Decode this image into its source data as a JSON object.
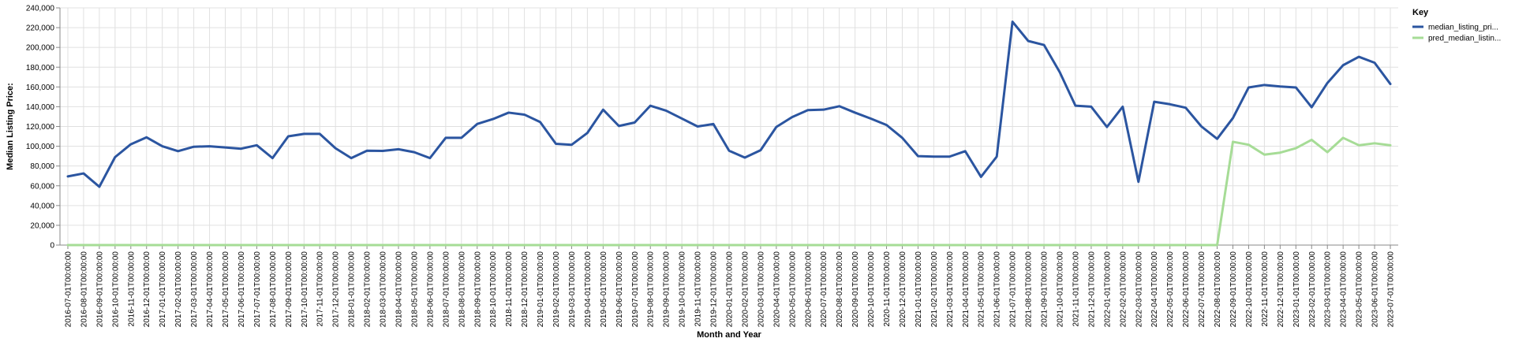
{
  "chart_data": {
    "type": "line",
    "title": "",
    "xlabel": "Month and Year",
    "ylabel": "Median Listing Price:",
    "ylim": [
      0,
      240000
    ],
    "y_ticks": [
      0,
      20000,
      40000,
      60000,
      80000,
      100000,
      120000,
      140000,
      160000,
      180000,
      200000,
      220000,
      240000
    ],
    "y_tick_labels": [
      "0",
      "20,000",
      "40,000",
      "60,000",
      "80,000",
      "100,000",
      "120,000",
      "140,000",
      "160,000",
      "180,000",
      "200,000",
      "220,000",
      "240,000"
    ],
    "grid": true,
    "legend": {
      "title": "Key",
      "position": "right"
    },
    "categories": [
      "2016-07-01T00:00:00",
      "2016-08-01T00:00:00",
      "2016-09-01T00:00:00",
      "2016-10-01T00:00:00",
      "2016-11-01T00:00:00",
      "2016-12-01T00:00:00",
      "2017-01-01T00:00:00",
      "2017-02-01T00:00:00",
      "2017-03-01T00:00:00",
      "2017-04-01T00:00:00",
      "2017-05-01T00:00:00",
      "2017-06-01T00:00:00",
      "2017-07-01T00:00:00",
      "2017-08-01T00:00:00",
      "2017-09-01T00:00:00",
      "2017-10-01T00:00:00",
      "2017-11-01T00:00:00",
      "2017-12-01T00:00:00",
      "2018-01-01T00:00:00",
      "2018-02-01T00:00:00",
      "2018-03-01T00:00:00",
      "2018-04-01T00:00:00",
      "2018-05-01T00:00:00",
      "2018-06-01T00:00:00",
      "2018-07-01T00:00:00",
      "2018-08-01T00:00:00",
      "2018-09-01T00:00:00",
      "2018-10-01T00:00:00",
      "2018-11-01T00:00:00",
      "2018-12-01T00:00:00",
      "2019-01-01T00:00:00",
      "2019-02-01T00:00:00",
      "2019-03-01T00:00:00",
      "2019-04-01T00:00:00",
      "2019-05-01T00:00:00",
      "2019-06-01T00:00:00",
      "2019-07-01T00:00:00",
      "2019-08-01T00:00:00",
      "2019-09-01T00:00:00",
      "2019-10-01T00:00:00",
      "2019-11-01T00:00:00",
      "2019-12-01T00:00:00",
      "2020-01-01T00:00:00",
      "2020-02-01T00:00:00",
      "2020-03-01T00:00:00",
      "2020-04-01T00:00:00",
      "2020-05-01T00:00:00",
      "2020-06-01T00:00:00",
      "2020-07-01T00:00:00",
      "2020-08-01T00:00:00",
      "2020-09-01T00:00:00",
      "2020-10-01T00:00:00",
      "2020-11-01T00:00:00",
      "2020-12-01T00:00:00",
      "2021-01-01T00:00:00",
      "2021-02-01T00:00:00",
      "2021-03-01T00:00:00",
      "2021-04-01T00:00:00",
      "2021-05-01T00:00:00",
      "2021-06-01T00:00:00",
      "2021-07-01T00:00:00",
      "2021-08-01T00:00:00",
      "2021-09-01T00:00:00",
      "2021-10-01T00:00:00",
      "2021-11-01T00:00:00",
      "2021-12-01T00:00:00",
      "2022-01-01T00:00:00",
      "2022-02-01T00:00:00",
      "2022-03-01T00:00:00",
      "2022-04-01T00:00:00",
      "2022-05-01T00:00:00",
      "2022-06-01T00:00:00",
      "2022-07-01T00:00:00",
      "2022-08-01T00:00:00",
      "2022-09-01T00:00:00",
      "2022-10-01T00:00:00",
      "2022-11-01T00:00:00",
      "2022-12-01T00:00:00",
      "2023-01-01T00:00:00",
      "2023-02-01T00:00:00",
      "2023-03-01T00:00:00",
      "2023-04-01T00:00:00",
      "2023-05-01T00:00:00",
      "2023-06-01T00:00:00",
      "2023-07-01T00:00:00"
    ],
    "series": [
      {
        "name": "median_listing_pri...",
        "color": "#2b55a0",
        "values": [
          69500,
          72500,
          59000,
          89000,
          102000,
          109000,
          100000,
          95000,
          99500,
          100000,
          98800,
          97500,
          101000,
          88000,
          110000,
          112500,
          112500,
          98000,
          88000,
          95500,
          95300,
          97000,
          94000,
          88000,
          108500,
          108500,
          122500,
          127500,
          134000,
          132000,
          124500,
          102500,
          101500,
          113500,
          137000,
          120500,
          124000,
          141000,
          136000,
          128000,
          120000,
          122500,
          95500,
          88500,
          96000,
          119500,
          129500,
          136500,
          137000,
          140500,
          134000,
          128000,
          121500,
          108500,
          90000,
          89500,
          89500,
          95000,
          69000,
          89500,
          226000,
          206500,
          202500,
          175000,
          141000,
          140000,
          119500,
          140000,
          64000,
          145000,
          142500,
          139000,
          120000,
          107500,
          128500,
          159500,
          162000,
          160500,
          159500,
          139500,
          164000,
          182000,
          190500,
          184500,
          163000
        ]
      },
      {
        "name": "pred_median_listin...",
        "color": "#a6dc96",
        "values": [
          0,
          0,
          0,
          0,
          0,
          0,
          0,
          0,
          0,
          0,
          0,
          0,
          0,
          0,
          0,
          0,
          0,
          0,
          0,
          0,
          0,
          0,
          0,
          0,
          0,
          0,
          0,
          0,
          0,
          0,
          0,
          0,
          0,
          0,
          0,
          0,
          0,
          0,
          0,
          0,
          0,
          0,
          0,
          0,
          0,
          0,
          0,
          0,
          0,
          0,
          0,
          0,
          0,
          0,
          0,
          0,
          0,
          0,
          0,
          0,
          0,
          0,
          0,
          0,
          0,
          0,
          0,
          0,
          0,
          0,
          0,
          0,
          0,
          0,
          104500,
          101500,
          91500,
          93500,
          98000,
          106500,
          94000,
          108500,
          101000,
          103000,
          101000
        ]
      }
    ]
  }
}
